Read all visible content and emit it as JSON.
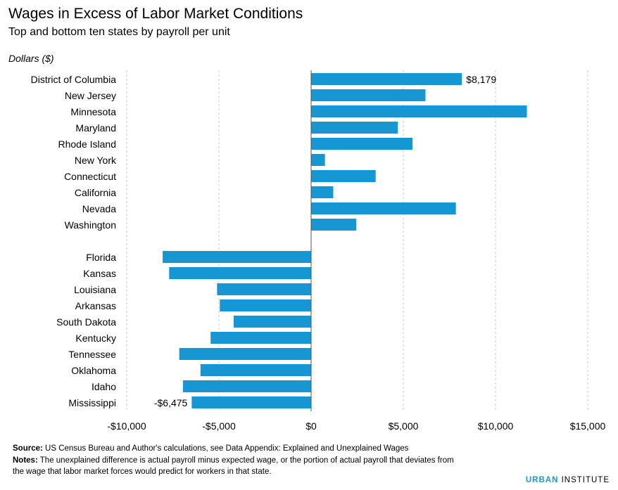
{
  "title": "Wages in Excess of Labor Market Conditions",
  "subtitle": "Top and bottom ten states by payroll per unit",
  "chart_data": {
    "type": "bar",
    "orientation": "horizontal",
    "title": "Wages in Excess of Labor Market Conditions",
    "subtitle": "Top and bottom ten states by payroll per unit",
    "unit_label": "Dollars ($)",
    "xlim": [
      -10000,
      15000
    ],
    "xticks": [
      -10000,
      -5000,
      0,
      5000,
      10000,
      15000
    ],
    "xtick_labels": [
      "-$10,000",
      "-$5,000",
      "$0",
      "$5,000",
      "$10,000",
      "$15,000"
    ],
    "bar_color": "#1696d2",
    "grid": "vertical dashed",
    "groups": [
      {
        "categories": [
          "District of Columbia",
          "New Jersey",
          "Minnesota",
          "Maryland",
          "Rhode Island",
          "New York",
          "Connecticut",
          "California",
          "Nevada",
          "Washington"
        ],
        "values": [
          8179,
          6200,
          11700,
          4700,
          5500,
          750,
          3500,
          1200,
          7850,
          2450
        ]
      },
      {
        "categories": [
          "Florida",
          "Kansas",
          "Louisiana",
          "Arkansas",
          "South Dakota",
          "Kentucky",
          "Tennessee",
          "Oklahoma",
          "Idaho",
          "Mississippi"
        ],
        "values": [
          -8050,
          -7700,
          -5100,
          -4950,
          -4200,
          -5450,
          -7150,
          -6000,
          -6950,
          -6475
        ]
      }
    ],
    "data_labels": [
      {
        "category": "District of Columbia",
        "text": "$8,179"
      },
      {
        "category": "Mississippi",
        "text": "-$6,475"
      }
    ]
  },
  "footer": {
    "source_label": "Source:",
    "source_text": " US Census Bureau and Author's calculations, see Data Appendix: Explained and Unexplained Wages",
    "notes_label": "Notes:",
    "notes_text_1": " The unexplained difference is actual payroll minus expected wage, or the portion of actual payroll that deviates from",
    "notes_text_2": "the wage that labor market forces would predict for workers in that state."
  },
  "brand": {
    "bold": "URBAN",
    "light": "INSTITUTE"
  }
}
